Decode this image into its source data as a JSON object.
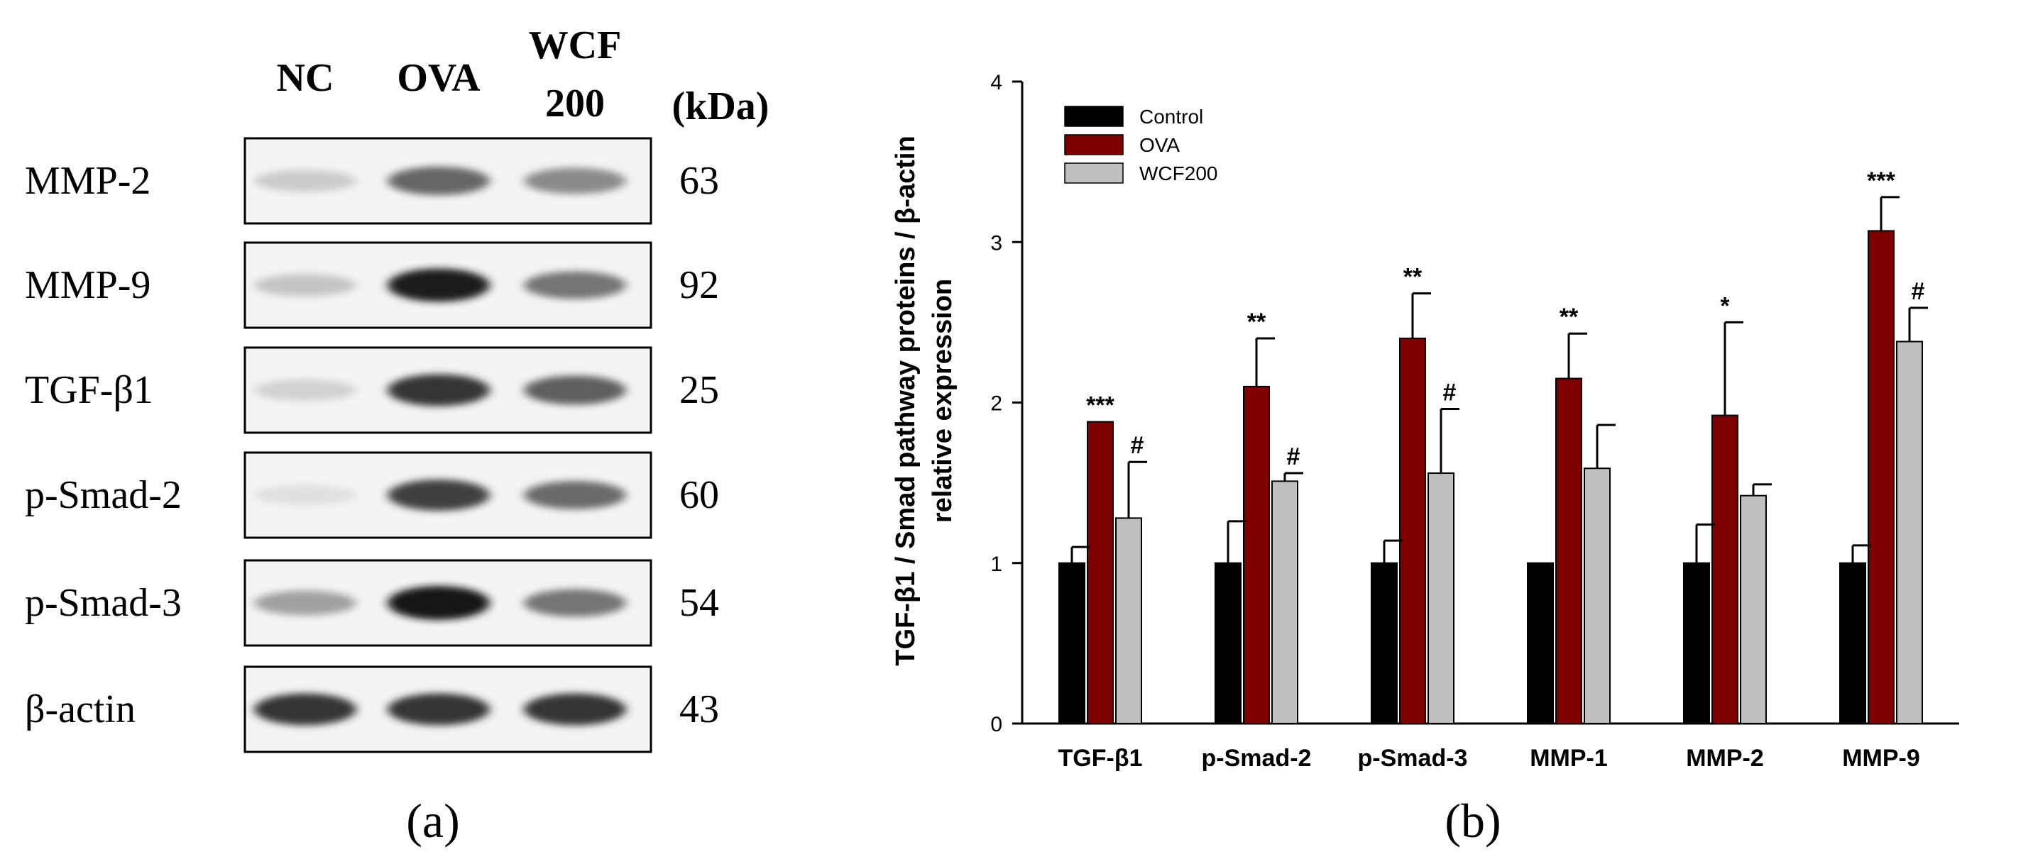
{
  "panel_a": {
    "columns": [
      "NC",
      "OVA",
      "WCF",
      "200"
    ],
    "kda_label": "(kDa)",
    "rows": [
      {
        "label": "MMP-2",
        "kda": "63",
        "bands": [
          0.15,
          0.62,
          0.45
        ]
      },
      {
        "label": "MMP-9",
        "kda": "92",
        "bands": [
          0.18,
          0.95,
          0.55
        ]
      },
      {
        "label": "TGF-β1",
        "kda": "25",
        "bands": [
          0.12,
          0.85,
          0.65
        ]
      },
      {
        "label": "p-Smad-2",
        "kda": "60",
        "bands": [
          0.05,
          0.8,
          0.6
        ]
      },
      {
        "label": "p-Smad-3",
        "kda": "54",
        "bands": [
          0.35,
          1.0,
          0.55
        ]
      },
      {
        "label": "β-actin",
        "kda": "43",
        "bands": [
          0.85,
          0.85,
          0.85
        ]
      }
    ],
    "caption": "(a)"
  },
  "panel_b": {
    "caption": "(b)"
  },
  "chart_data": {
    "type": "bar",
    "ylabel_line1": "TGF-β1 / Smad pathway proteins / β-actin",
    "ylabel_line2": "relative expression",
    "xlabel": "",
    "ylim": [
      0,
      4
    ],
    "yticks": [
      0,
      1,
      2,
      3,
      4
    ],
    "categories": [
      "TGF-β1",
      "p-Smad-2",
      "p-Smad-3",
      "MMP-1",
      "MMP-2",
      "MMP-9"
    ],
    "legend_position": "top-left",
    "series": [
      {
        "name": "Control",
        "color": "#000000",
        "values": [
          1.0,
          1.0,
          1.0,
          1.0,
          1.0,
          1.0
        ],
        "errors": [
          0.1,
          0.26,
          0.14,
          0.0,
          0.24,
          0.11
        ],
        "annotations": [
          "",
          "",
          "",
          "",
          "",
          ""
        ]
      },
      {
        "name": "OVA",
        "color": "#7f0000",
        "values": [
          1.88,
          2.1,
          2.4,
          2.15,
          1.92,
          3.07
        ],
        "errors": [
          0.0,
          0.3,
          0.28,
          0.28,
          0.58,
          0.21
        ],
        "annotations": [
          "***",
          "**",
          "**",
          "**",
          "*",
          "***"
        ]
      },
      {
        "name": "WCF200",
        "color": "#bfbfbf",
        "values": [
          1.28,
          1.51,
          1.56,
          1.59,
          1.42,
          2.38
        ],
        "errors": [
          0.35,
          0.05,
          0.4,
          0.27,
          0.07,
          0.21
        ],
        "annotations": [
          "#",
          "#",
          "#",
          "",
          "",
          "#"
        ]
      }
    ]
  }
}
